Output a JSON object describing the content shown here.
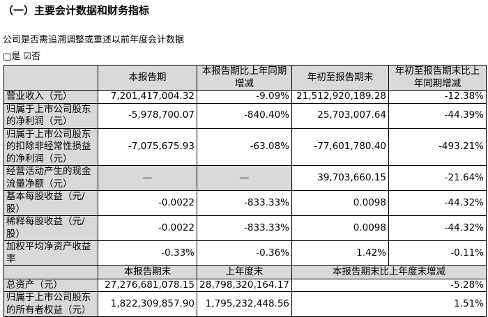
{
  "heading": "（一）主要会计数据和财务指标",
  "question": "公司是否需追溯调整或重述以前年度会计数据",
  "options": "□是 ☑否",
  "table": {
    "header": [
      "本报告期",
      "本报告期比上年同期增减",
      "年初至报告期末",
      "年初至报告期末比上年同期增减"
    ],
    "rows": [
      [
        "营业收入（元）",
        "7,201,417,004.32",
        "-9.09%",
        "21,512,920,189.28",
        "-12.38%"
      ],
      [
        "归属于上市公司股东的净利润（元）",
        "-5,978,700.07",
        "-840.40%",
        "25,703,007.64",
        "-44.39%"
      ],
      [
        "归属于上市公司股东的扣除非经常性损益的净利润（元）",
        "-7,075,675.93",
        "-63.08%",
        "-77,601,780.40",
        "-493.21%"
      ],
      [
        "经营活动产生的现金流量净额（元）",
        "—",
        "—",
        "39,703,660.15",
        "-21.64%"
      ],
      [
        "基本每股收益（元/股）",
        "-0.0022",
        "-833.33%",
        "0.0098",
        "-44.32%"
      ],
      [
        "稀释每股收益（元/股）",
        "-0.0022",
        "-833.33%",
        "0.0098",
        "-44.32%"
      ],
      [
        "加权平均净资产收益率",
        "-0.33%",
        "-0.36%",
        "1.42%",
        "-0.11%"
      ]
    ],
    "header2": [
      "本报告期末",
      "上年度末",
      "本报告期末比上年度末增减"
    ],
    "rows2": [
      [
        "总资产（元）",
        "27,276,681,078.15",
        "28,798,320,164.17",
        "-5.28%"
      ],
      [
        "归属于上市公司股东的所有者权益（元）",
        "1,822,309,857.90",
        "1,795,232,448.56",
        "1.51%"
      ]
    ]
  }
}
